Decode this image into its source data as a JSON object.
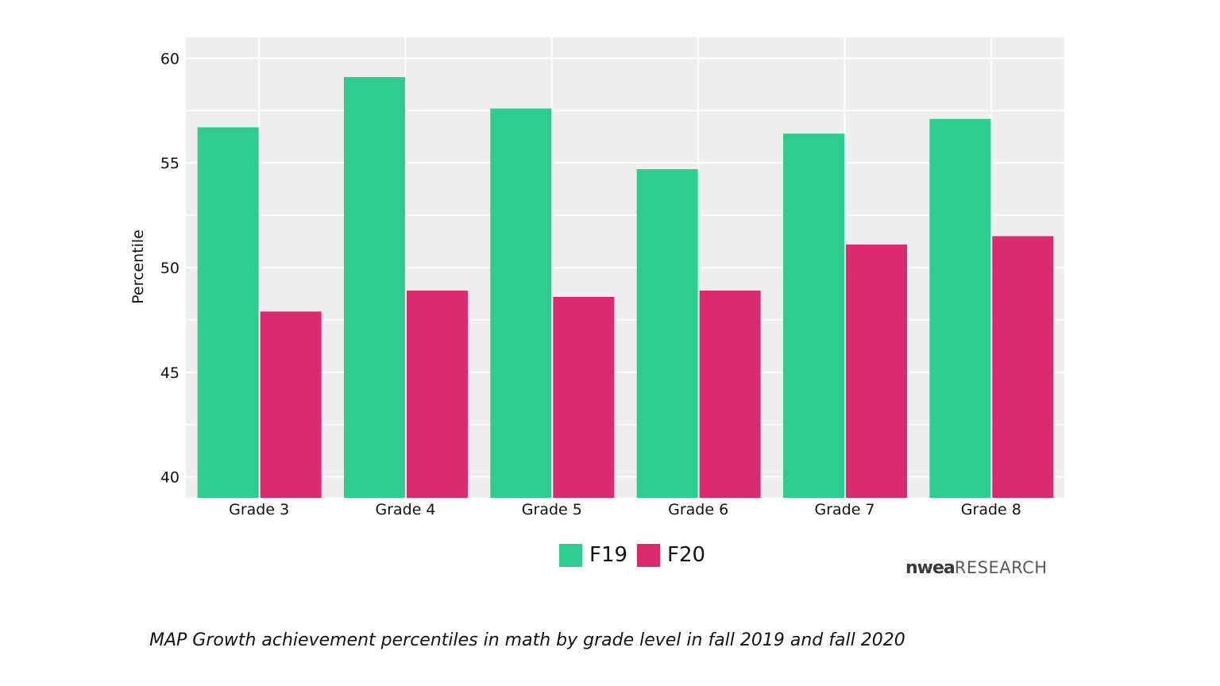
{
  "chart_data": {
    "type": "bar",
    "categories": [
      "Grade 3",
      "Grade 4",
      "Grade 5",
      "Grade 6",
      "Grade 7",
      "Grade 8"
    ],
    "series": [
      {
        "name": "F19",
        "color": "#2ecc8f",
        "values": [
          56.7,
          59.1,
          57.6,
          54.7,
          56.4,
          57.1
        ]
      },
      {
        "name": "F20",
        "color": "#d92b6e",
        "values": [
          47.9,
          48.9,
          48.6,
          48.9,
          51.1,
          51.5
        ]
      }
    ],
    "title": "",
    "xlabel": "",
    "ylabel": "Percentile",
    "ylim": [
      39,
      61
    ],
    "yticks": [
      40,
      45,
      50,
      55,
      60
    ],
    "grid": true,
    "background": "#eeeeee",
    "legend_position": "bottom"
  },
  "branding": {
    "logo_mark": "nwea",
    "logo_sub": "RESEARCH"
  },
  "caption": "MAP Growth achievement percentiles in math by grade level in fall 2019 and fall 2020"
}
